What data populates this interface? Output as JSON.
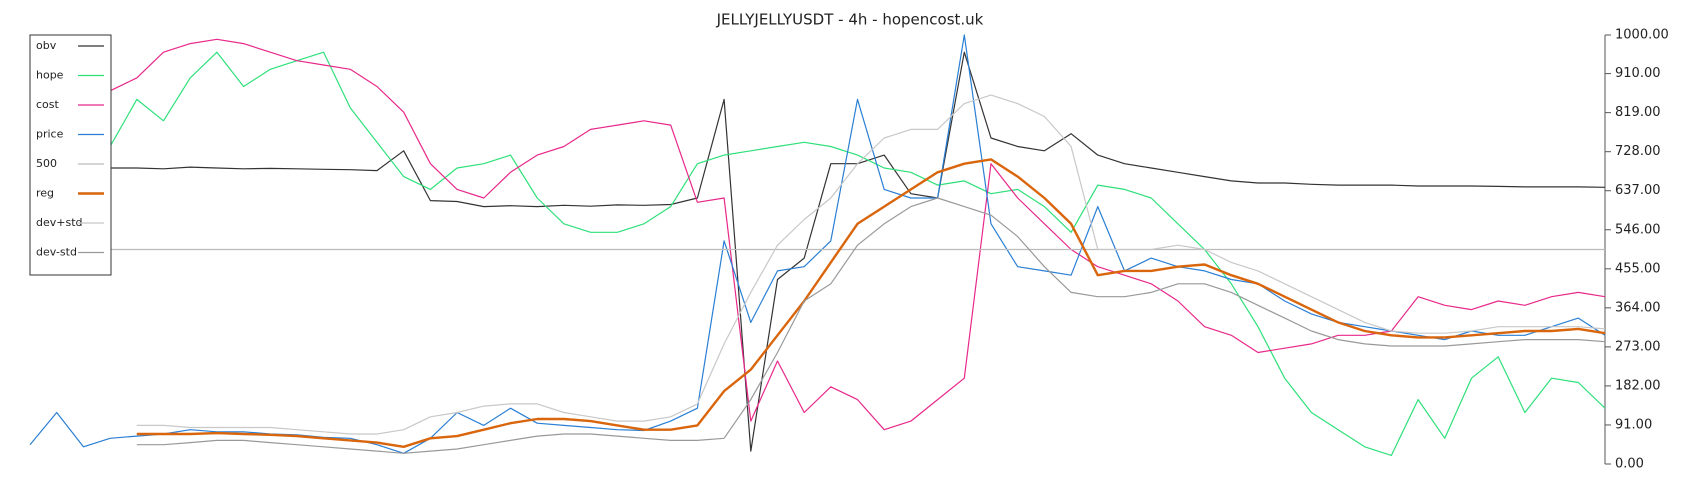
{
  "chart_data": {
    "type": "line",
    "title": "JELLYJELLYUSDT - 4h - hopencost.uk",
    "categories": [
      null,
      null,
      null,
      null,
      null,
      null,
      null,
      null,
      null,
      null,
      null,
      null,
      null,
      null,
      null,
      null,
      null,
      null,
      null,
      null,
      null,
      null,
      null,
      null,
      null,
      null,
      null,
      null,
      null,
      null,
      null,
      null,
      null,
      null,
      null,
      null,
      null,
      null,
      null,
      null,
      null,
      null,
      null,
      null,
      null,
      null,
      null,
      null,
      null,
      null,
      null,
      null,
      null,
      null,
      null,
      null,
      null,
      null,
      null,
      null
    ],
    "ylim": [
      0,
      1000
    ],
    "yticks": [
      {
        "value": 0,
        "label": "0.00"
      },
      {
        "value": 91,
        "label": "91.00"
      },
      {
        "value": 182,
        "label": "182.00"
      },
      {
        "value": 273,
        "label": "273.00"
      },
      {
        "value": 364,
        "label": "364.00"
      },
      {
        "value": 455,
        "label": "455.00"
      },
      {
        "value": 546,
        "label": "546.00"
      },
      {
        "value": 637,
        "label": "637.00"
      },
      {
        "value": 728,
        "label": "728.00"
      },
      {
        "value": 819,
        "label": "819.00"
      },
      {
        "value": 910,
        "label": "910.00"
      },
      {
        "value": 1000,
        "label": "1000.00"
      }
    ],
    "legend": "upper left",
    "series": [
      {
        "name": "obv",
        "color": "#333333",
        "width": 1.2,
        "values": [
          null,
          null,
          null,
          690,
          690,
          688,
          692,
          690,
          688,
          689,
          688,
          687,
          686,
          684,
          730,
          614,
          612,
          600,
          602,
          600,
          603,
          601,
          604,
          603,
          605,
          620,
          850,
          30,
          430,
          480,
          700,
          700,
          720,
          630,
          620,
          960,
          760,
          740,
          730,
          770,
          720,
          700,
          690,
          680,
          670,
          660,
          655,
          655,
          652,
          650,
          650,
          650,
          648,
          648,
          648,
          647,
          646,
          646,
          646,
          645
        ]
      },
      {
        "name": "hope",
        "color": "#2ee07a",
        "width": 1.2,
        "values": [
          null,
          null,
          null,
          740,
          850,
          800,
          900,
          960,
          880,
          920,
          940,
          960,
          830,
          750,
          670,
          640,
          690,
          700,
          720,
          620,
          560,
          540,
          540,
          560,
          600,
          700,
          720,
          730,
          740,
          750,
          740,
          720,
          690,
          680,
          650,
          660,
          630,
          640,
          600,
          540,
          650,
          640,
          620,
          560,
          500,
          420,
          320,
          200,
          120,
          80,
          40,
          20,
          150,
          60,
          200,
          250,
          120,
          200,
          190,
          130
        ]
      },
      {
        "name": "cost",
        "color": "#e8288a",
        "width": 1.2,
        "values": [
          null,
          null,
          null,
          870,
          900,
          960,
          980,
          990,
          980,
          960,
          940,
          930,
          920,
          880,
          820,
          700,
          640,
          620,
          680,
          720,
          740,
          780,
          790,
          800,
          790,
          610,
          620,
          100,
          240,
          120,
          180,
          150,
          80,
          100,
          150,
          200,
          700,
          620,
          560,
          500,
          460,
          440,
          420,
          380,
          320,
          300,
          260,
          270,
          280,
          300,
          300,
          310,
          390,
          370,
          360,
          380,
          370,
          390,
          400,
          390
        ]
      },
      {
        "name": "price",
        "color": "#2a7fd4",
        "width": 1.2,
        "values": [
          45,
          120,
          40,
          60,
          65,
          70,
          80,
          75,
          75,
          70,
          68,
          62,
          60,
          45,
          25,
          60,
          120,
          90,
          130,
          95,
          90,
          85,
          80,
          78,
          100,
          130,
          520,
          330,
          450,
          460,
          520,
          850,
          640,
          620,
          620,
          1000,
          560,
          460,
          450,
          440,
          600,
          450,
          480,
          460,
          450,
          430,
          420,
          380,
          350,
          330,
          320,
          310,
          300,
          290,
          310,
          300,
          300,
          320,
          340,
          300
        ]
      },
      {
        "name": "500",
        "color": "#bbbbbb",
        "width": 1.2,
        "values": [
          500,
          500,
          500,
          500,
          500,
          500,
          500,
          500,
          500,
          500,
          500,
          500,
          500,
          500,
          500,
          500,
          500,
          500,
          500,
          500,
          500,
          500,
          500,
          500,
          500,
          500,
          500,
          500,
          500,
          500,
          500,
          500,
          500,
          500,
          500,
          500,
          500,
          500,
          500,
          500,
          500,
          500,
          500,
          500,
          500,
          500,
          500,
          500,
          500,
          500,
          500,
          500,
          500,
          500,
          500,
          500,
          500,
          500,
          500,
          500
        ]
      },
      {
        "name": "reg",
        "color": "#d9650c",
        "width": 2.4,
        "values": [
          null,
          null,
          null,
          null,
          70,
          70,
          70,
          72,
          70,
          68,
          65,
          60,
          55,
          50,
          40,
          60,
          65,
          80,
          95,
          105,
          105,
          100,
          90,
          80,
          80,
          90,
          170,
          220,
          300,
          380,
          470,
          560,
          600,
          640,
          680,
          700,
          710,
          670,
          620,
          560,
          440,
          450,
          450,
          460,
          465,
          440,
          420,
          390,
          360,
          330,
          310,
          300,
          295,
          295,
          300,
          305,
          310,
          310,
          315,
          305
        ]
      },
      {
        "name": "dev+std",
        "color": "#c8c8c8",
        "width": 1.2,
        "values": [
          null,
          null,
          null,
          null,
          90,
          90,
          85,
          85,
          85,
          85,
          80,
          75,
          70,
          70,
          80,
          110,
          120,
          135,
          140,
          140,
          120,
          110,
          100,
          100,
          110,
          140,
          280,
          400,
          510,
          570,
          620,
          700,
          760,
          780,
          780,
          840,
          860,
          840,
          810,
          740,
          500,
          500,
          500,
          510,
          500,
          470,
          450,
          420,
          390,
          360,
          330,
          310,
          305,
          305,
          310,
          320,
          320,
          320,
          320,
          315
        ]
      },
      {
        "name": "dev-std",
        "color": "#999999",
        "width": 1.2,
        "values": [
          null,
          null,
          null,
          null,
          45,
          45,
          50,
          55,
          55,
          50,
          45,
          40,
          35,
          30,
          25,
          30,
          35,
          45,
          55,
          65,
          70,
          70,
          65,
          60,
          55,
          55,
          60,
          150,
          260,
          380,
          420,
          510,
          560,
          600,
          620,
          600,
          580,
          530,
          460,
          400,
          390,
          390,
          400,
          420,
          420,
          400,
          370,
          340,
          310,
          290,
          280,
          275,
          275,
          275,
          280,
          285,
          290,
          290,
          290,
          285
        ]
      }
    ]
  }
}
